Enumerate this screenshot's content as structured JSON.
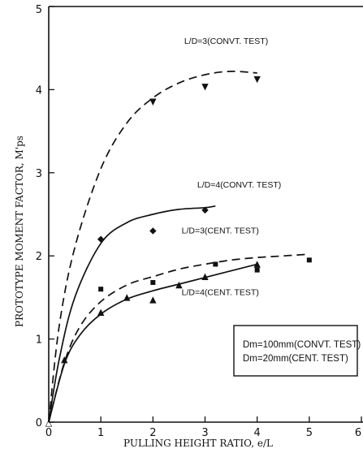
{
  "chart_data": {
    "type": "scatter",
    "xlabel": "PULLING HEIGHT RATIO, e/L",
    "ylabel": "PROTOTYPE MOMENT FACTOR, M'ps",
    "xlim": [
      0,
      6
    ],
    "ylim": [
      0,
      5
    ],
    "xticks": [
      "0",
      "1",
      "2",
      "3",
      "4",
      "5",
      "6"
    ],
    "yticks": [
      "0",
      "1",
      "2",
      "3",
      "4",
      "5"
    ],
    "grid": false,
    "series": [
      {
        "name": "L/D=3(CONVT. TEST)",
        "marker": "inverted-triangle",
        "line": "dashed",
        "points": [
          [
            2.0,
            3.85
          ],
          [
            3.0,
            4.03
          ],
          [
            4.0,
            4.12
          ]
        ],
        "curve": [
          [
            0,
            0
          ],
          [
            0.2,
            1.15
          ],
          [
            0.5,
            2.1
          ],
          [
            1.0,
            3.05
          ],
          [
            1.5,
            3.6
          ],
          [
            2.0,
            3.9
          ],
          [
            2.5,
            4.08
          ],
          [
            3.0,
            4.18
          ],
          [
            3.5,
            4.22
          ],
          [
            4.0,
            4.2
          ]
        ]
      },
      {
        "name": "L/D=4(CONVT. TEST)",
        "marker": "diamond",
        "line": "solid",
        "points": [
          [
            1.0,
            2.2
          ],
          [
            2.0,
            2.3
          ],
          [
            3.0,
            2.55
          ]
        ],
        "curve": [
          [
            0,
            0
          ],
          [
            0.2,
            0.75
          ],
          [
            0.5,
            1.5
          ],
          [
            1.0,
            2.15
          ],
          [
            1.5,
            2.4
          ],
          [
            2.0,
            2.5
          ],
          [
            2.5,
            2.56
          ],
          [
            3.0,
            2.58
          ],
          [
            3.2,
            2.6
          ]
        ]
      },
      {
        "name": "L/D=3(CENT. TEST)",
        "marker": "square",
        "line": "dashed",
        "points": [
          [
            1.0,
            1.6
          ],
          [
            2.0,
            1.68
          ],
          [
            3.2,
            1.9
          ],
          [
            4.0,
            1.83
          ],
          [
            5.0,
            1.95
          ]
        ],
        "curve": [
          [
            0,
            0
          ],
          [
            0.3,
            0.72
          ],
          [
            0.6,
            1.15
          ],
          [
            1.0,
            1.45
          ],
          [
            1.5,
            1.65
          ],
          [
            2.0,
            1.75
          ],
          [
            2.5,
            1.84
          ],
          [
            3.0,
            1.9
          ],
          [
            3.5,
            1.95
          ],
          [
            4.0,
            1.98
          ],
          [
            4.5,
            2.0
          ],
          [
            5.0,
            2.02
          ]
        ]
      },
      {
        "name": "L/D=4(CENT. TEST)",
        "marker": "triangle",
        "line": "solid",
        "points": [
          [
            0.3,
            0.75
          ],
          [
            1.0,
            1.32
          ],
          [
            1.5,
            1.5
          ],
          [
            2.0,
            1.47
          ],
          [
            2.5,
            1.65
          ],
          [
            3.0,
            1.75
          ],
          [
            4.0,
            1.9
          ]
        ],
        "curve": [
          [
            0,
            0
          ],
          [
            0.3,
            0.7
          ],
          [
            0.6,
            1.05
          ],
          [
            1.0,
            1.3
          ],
          [
            1.5,
            1.48
          ],
          [
            2.0,
            1.58
          ],
          [
            2.5,
            1.66
          ],
          [
            3.0,
            1.74
          ],
          [
            3.5,
            1.82
          ],
          [
            4.0,
            1.9
          ]
        ]
      }
    ],
    "curve_labels": [
      {
        "text": "L/D=3(CONVT. TEST)",
        "x": 2.6,
        "y": 4.55
      },
      {
        "text": "L/D=4(CONVT. TEST)",
        "x": 2.85,
        "y": 2.82
      },
      {
        "text": "L/D=3(CENT. TEST)",
        "x": 2.55,
        "y": 2.27
      },
      {
        "text": "L/D=4(CENT. TEST)",
        "x": 2.55,
        "y": 1.53
      }
    ],
    "legend": {
      "position": "lower-right",
      "lines": [
        "Dm=100mm(CONVT. TEST)",
        "Dm=20mm(CENT. TEST)"
      ]
    }
  }
}
